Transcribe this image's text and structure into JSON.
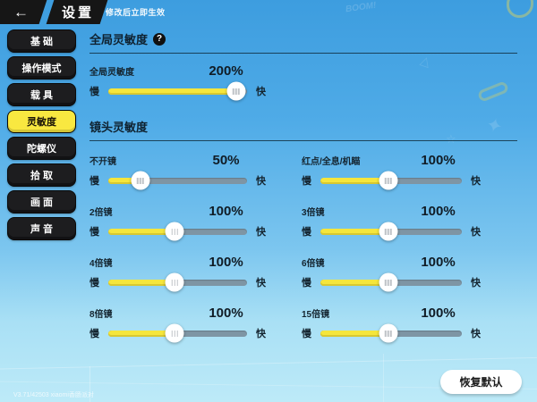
{
  "header": {
    "back_glyph": "←",
    "title": "设置",
    "notice": "修改后立即生效"
  },
  "sidebar": {
    "items": [
      {
        "label": "基 础",
        "selected": false
      },
      {
        "label": "操作模式",
        "selected": false
      },
      {
        "label": "载 具",
        "selected": false
      },
      {
        "label": "灵敏度",
        "selected": true
      },
      {
        "label": "陀螺仪",
        "selected": false
      },
      {
        "label": "拾 取",
        "selected": false
      },
      {
        "label": "画 面",
        "selected": false
      },
      {
        "label": "声 音",
        "selected": false
      }
    ]
  },
  "global_section": {
    "title": "全局灵敏度",
    "help_glyph": "?",
    "slider": {
      "label": "全局灵敏度",
      "value": "200%",
      "slow": "慢",
      "fast": "快",
      "percent": 92
    }
  },
  "camera_section": {
    "title": "镜头灵敏度",
    "slow": "慢",
    "fast": "快",
    "sliders": [
      {
        "label": "不开镜",
        "value": "50%",
        "percent": 23
      },
      {
        "label": "红点/全息/机瞄",
        "value": "100%",
        "percent": 48
      },
      {
        "label": "2倍镜",
        "value": "100%",
        "percent": 48
      },
      {
        "label": "3倍镜",
        "value": "100%",
        "percent": 48
      },
      {
        "label": "4倍镜",
        "value": "100%",
        "percent": 48
      },
      {
        "label": "6倍镜",
        "value": "100%",
        "percent": 48
      },
      {
        "label": "8倍镜",
        "value": "100%",
        "percent": 48
      },
      {
        "label": "15倍镜",
        "value": "100%",
        "percent": 48
      }
    ]
  },
  "footer": {
    "version": "V3.71/42503 xiaomi香肠派对",
    "restore_label": "恢复默认"
  },
  "colors": {
    "accent_yellow": "#f5e63c",
    "track_gray": "#7e95a4",
    "selected_tab_yellow": "#f9e840",
    "background_blue": "#4aa7e4",
    "panel_black": "#1d1d1f"
  }
}
